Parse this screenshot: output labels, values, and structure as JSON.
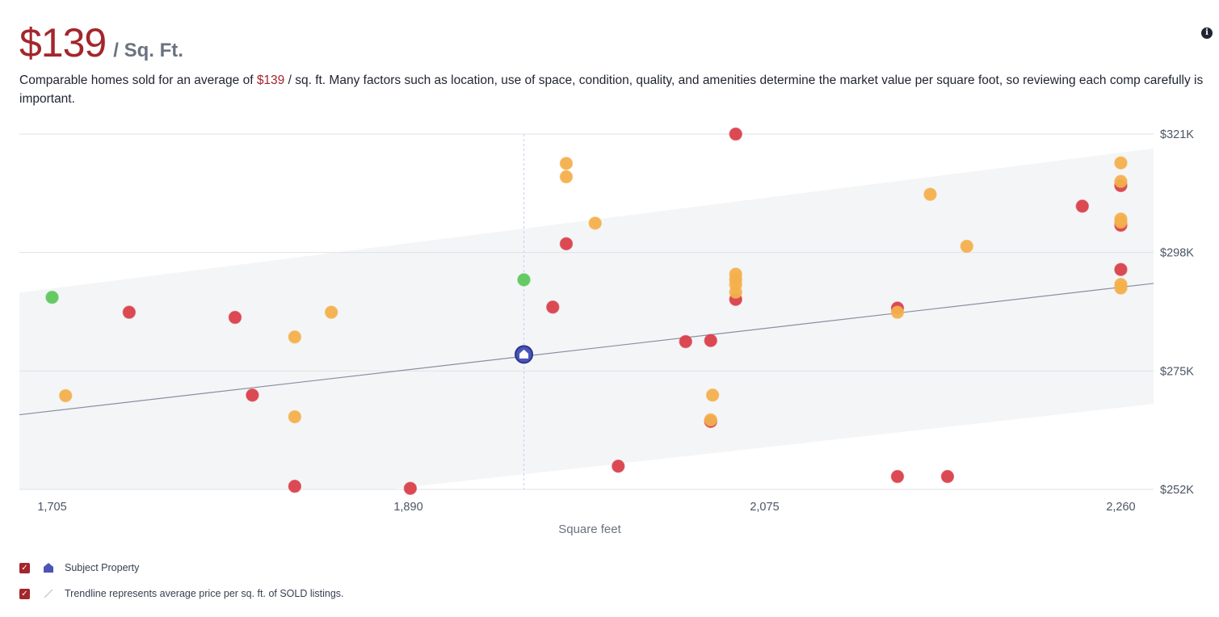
{
  "header": {
    "price": "$139",
    "unit": "/ Sq. Ft."
  },
  "description": {
    "before": "Comparable homes sold for an average of ",
    "highlight": "$139",
    "after": " / sq. ft. Many factors such as location, use of space, condition, quality, and amenities determine the market value per square foot, so reviewing each comp carefully is important."
  },
  "legend": {
    "subject_label": "Subject Property",
    "trend_label": "Trendline represents average price per sq. ft. of SOLD listings."
  },
  "colors": {
    "sold": "#d9404a",
    "pending": "#f3b04c",
    "active": "#5cc85c",
    "subject": "#4a55b5",
    "band": "#f4f5f7",
    "trend": "#8a8fa0",
    "accent": "#a3262c"
  },
  "icons": {
    "info": "info-icon",
    "check": "checkmark-icon",
    "subject": "house-icon",
    "trend": "trendline-icon"
  },
  "chart_data": {
    "type": "scatter",
    "xlabel": "Square feet",
    "ylabel": "",
    "xlim": [
      1688,
      2277
    ],
    "ylim": [
      252000,
      321000
    ],
    "x_ticks": [
      1705,
      1890,
      2075,
      2260
    ],
    "x_tick_labels": [
      "1,705",
      "1,890",
      "2,075",
      "2,260"
    ],
    "y_ticks": [
      252000,
      275000,
      298000,
      321000
    ],
    "y_tick_labels": [
      "$252K",
      "$275K",
      "$298K",
      "$321K"
    ],
    "grid": true,
    "trendline": {
      "x": [
        1688,
        2277
      ],
      "y": [
        266500,
        292000
      ]
    },
    "band": {
      "x": [
        1688,
        2277
      ],
      "upper": [
        290200,
        318200
      ],
      "lower": [
        244000,
        268600
      ]
    },
    "subject": {
      "x": 1950,
      "y": 278200
    },
    "series": [
      {
        "status": "sold",
        "points": [
          [
            1745,
            286400
          ],
          [
            1800,
            285400
          ],
          [
            1809,
            270300
          ],
          [
            1831,
            252600
          ],
          [
            1891,
            252200
          ],
          [
            1965,
            287400
          ],
          [
            1972,
            299700
          ],
          [
            1999,
            256500
          ],
          [
            2034,
            280700
          ],
          [
            2047,
            280900
          ],
          [
            2047,
            265200
          ],
          [
            2060,
            321000
          ],
          [
            2060,
            288900
          ],
          [
            2144,
            287200
          ],
          [
            2144,
            254500
          ],
          [
            2170,
            254500
          ],
          [
            2240,
            307000
          ],
          [
            2260,
            311000
          ],
          [
            2260,
            303300
          ],
          [
            2260,
            294700
          ]
        ]
      },
      {
        "status": "pending",
        "points": [
          [
            1712,
            270200
          ],
          [
            1831,
            281600
          ],
          [
            1831,
            266100
          ],
          [
            1850,
            286400
          ],
          [
            1972,
            315300
          ],
          [
            1972,
            312700
          ],
          [
            1987,
            303700
          ],
          [
            2048,
            270300
          ],
          [
            2047,
            265500
          ],
          [
            2060,
            293800
          ],
          [
            2060,
            292800
          ],
          [
            2060,
            291800
          ],
          [
            2060,
            290300
          ],
          [
            2144,
            286400
          ],
          [
            2161,
            309300
          ],
          [
            2180,
            299200
          ],
          [
            2260,
            315400
          ],
          [
            2260,
            311800
          ],
          [
            2260,
            304500
          ],
          [
            2260,
            303900
          ],
          [
            2260,
            291800
          ],
          [
            2260,
            291100
          ]
        ]
      },
      {
        "status": "active",
        "points": [
          [
            1705,
            289300
          ],
          [
            1950,
            292700
          ]
        ]
      }
    ]
  }
}
